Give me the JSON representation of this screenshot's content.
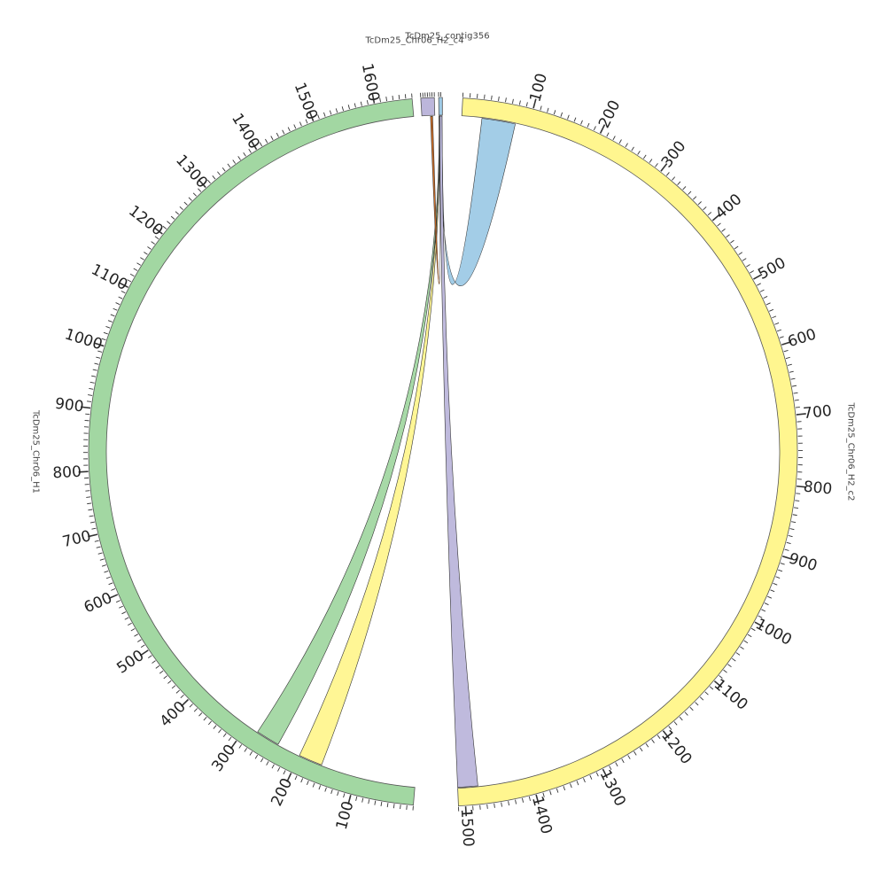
{
  "chart_data": {
    "type": "chord",
    "title": "",
    "unit_step": 100,
    "chromosomes": [
      {
        "id": "h2c2",
        "name": "TcDm25_Chr06_H2_c2",
        "length": 1510,
        "color": "#fff68f"
      },
      {
        "id": "h1",
        "name": "TcDm25_Chr06_H1",
        "length": 1660,
        "color": "#a2d7a2"
      },
      {
        "id": "c4",
        "name": "TcDm25_Chr06_H2_c4",
        "length": 60,
        "color": "#bcb6db"
      },
      {
        "id": "c356",
        "name": "TcDm25_contig356",
        "length": 18,
        "color": "#9ecae6"
      }
    ],
    "links": [
      {
        "from": "c356",
        "from_range": [
          2,
          16
        ],
        "to": "h2c2",
        "to_range": [
          30,
          80
        ],
        "color": "#9ecae6"
      },
      {
        "from": "c356",
        "from_range": [
          2,
          16
        ],
        "to": "h2c2",
        "to_range": [
          1480,
          1510
        ],
        "color": "#bcb6db"
      },
      {
        "from": "c356",
        "from_range": [
          1,
          4
        ],
        "to": "h1",
        "to_range": [
          160,
          200
        ],
        "color": "#fff68f"
      },
      {
        "from": "c356",
        "from_range": [
          1,
          4
        ],
        "to": "h1",
        "to_range": [
          240,
          280
        ],
        "color": "#a2d7a2"
      },
      {
        "from": "c4",
        "from_range": [
          40,
          50
        ],
        "to": "c356",
        "to_range": [
          1,
          3
        ],
        "color": "#c8651b"
      }
    ]
  }
}
